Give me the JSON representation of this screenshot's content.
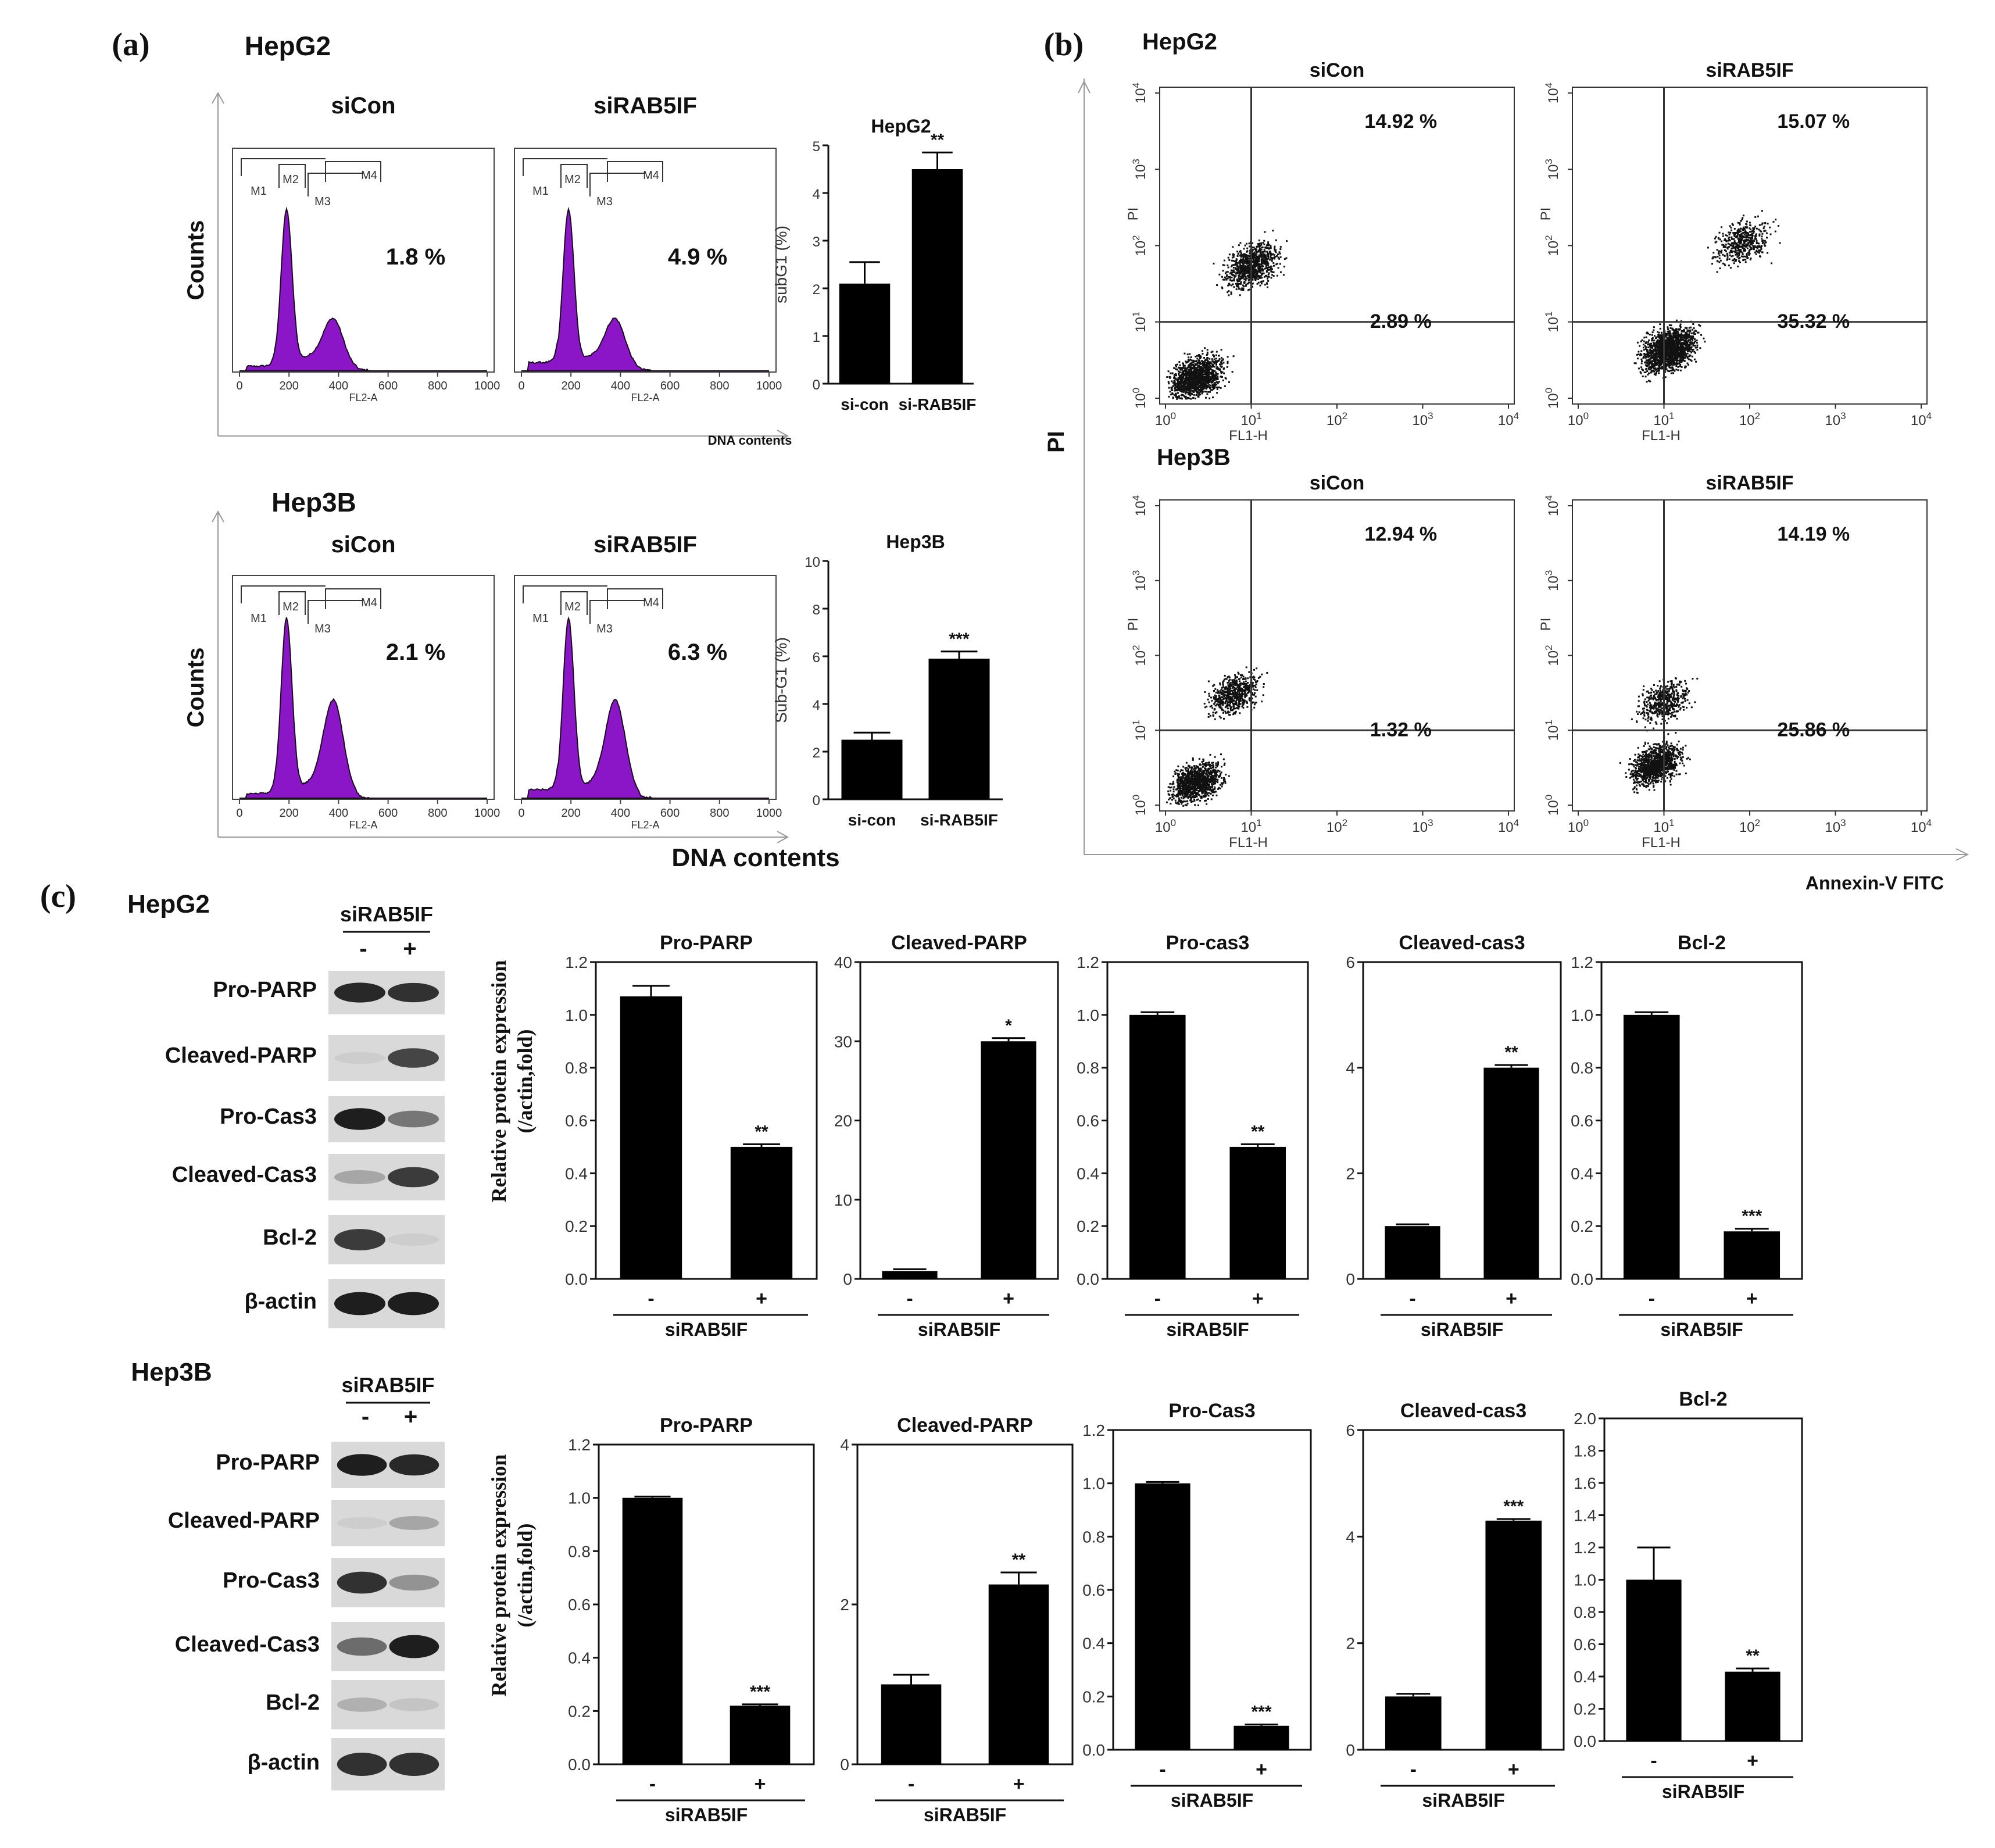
{
  "panel_labels": {
    "a": "(a)",
    "b": "(b)",
    "c": "(c)"
  },
  "panel_a": {
    "rows": [
      {
        "cell": "HepG2",
        "x_axis_label": "DNA contents",
        "y_axis_label": "Counts",
        "hist": [
          {
            "title": "siCon",
            "percent": "1.8 %",
            "gates": [
              "M1",
              "M2",
              "M3",
              "M4"
            ],
            "xlabel": "FL2-A",
            "ticks": [
              "0",
              "200",
              "400",
              "600",
              "800",
              "1000"
            ]
          },
          {
            "title": "siRAB5IF",
            "percent": "4.9 %",
            "gates": [
              "M1",
              "M2",
              "M3",
              "M4"
            ],
            "xlabel": "FL2-A",
            "ticks": [
              "0",
              "200",
              "400",
              "600",
              "800",
              "1000"
            ]
          }
        ]
      },
      {
        "cell": "Hep3B",
        "x_axis_label": "DNA contents",
        "y_axis_label": "Counts",
        "hist": [
          {
            "title": "siCon",
            "percent": "2.1 %",
            "gates": [
              "M1",
              "M2",
              "M3",
              "M4"
            ],
            "xlabel": "FL2-A",
            "ticks": [
              "0",
              "200",
              "400",
              "600",
              "800",
              "1000"
            ]
          },
          {
            "title": "siRAB5IF",
            "percent": "6.3 %",
            "gates": [
              "M1",
              "M2",
              "M3",
              "M4"
            ],
            "xlabel": "FL2-A",
            "ticks": [
              "0",
              "200",
              "400",
              "600",
              "800",
              "1000"
            ]
          }
        ]
      }
    ]
  },
  "panel_b": {
    "y_axis_label": "PI",
    "x_axis_label": "Annexin-V FITC",
    "rows": [
      {
        "cell": "HepG2",
        "plots": [
          {
            "title": "siCon",
            "upper_right": "14.92 %",
            "lower_right": "2.89 %"
          },
          {
            "title": "siRAB5IF",
            "upper_right": "15.07 %",
            "lower_right": "35.32 %"
          }
        ]
      },
      {
        "cell": "Hep3B",
        "plots": [
          {
            "title": "siCon",
            "upper_right": "12.94 %",
            "lower_right": "1.32 %"
          },
          {
            "title": "siRAB5IF",
            "upper_right": "14.19 %",
            "lower_right": "25.86 %"
          }
        ]
      }
    ],
    "xlabel": "FL1-H",
    "ylabel": "PI",
    "decades": [
      "0",
      "1",
      "2",
      "3",
      "4"
    ]
  },
  "panel_c": {
    "blots": [
      {
        "cell": "HepG2",
        "treatment": "siRAB5IF",
        "lanes": [
          "-",
          "+"
        ],
        "bands": [
          "Pro-PARP",
          "Cleaved-PARP",
          "Pro-Cas3",
          "Cleaved-Cas3",
          "Bcl-2",
          "β-actin"
        ]
      },
      {
        "cell": "Hep3B",
        "treatment": "siRAB5IF",
        "lanes": [
          "-",
          "+"
        ],
        "bands": [
          "Pro-PARP",
          "Cleaved-PARP",
          "Pro-Cas3",
          "Cleaved-Cas3",
          "Bcl-2",
          "β-actin"
        ]
      }
    ],
    "y_axis_label_line1": "Relative  protein expression",
    "y_axis_label_line2": "(/actin,fold)",
    "group_label": "siRAB5IF",
    "lane_labels": [
      "-",
      "+"
    ]
  },
  "chart_data": [
    {
      "type": "bar",
      "panel": "a-HepG2",
      "title": "HepG2",
      "ylabel": "subG1 (%)",
      "categories": [
        "si-con",
        "si-RAB5IF"
      ],
      "values": [
        2.1,
        4.5
      ],
      "errors": [
        0.45,
        0.35
      ],
      "significance": [
        "",
        "**"
      ],
      "ylim": [
        0,
        5
      ],
      "yticks": [
        "0",
        "1",
        "2",
        "3",
        "4",
        "5"
      ]
    },
    {
      "type": "bar",
      "panel": "a-Hep3B",
      "title": "Hep3B",
      "ylabel": "Sub-G1 (%)",
      "categories": [
        "si-con",
        "si-RAB5IF"
      ],
      "values": [
        2.5,
        5.9
      ],
      "errors": [
        0.3,
        0.3
      ],
      "significance": [
        "",
        "***"
      ],
      "ylim": [
        0,
        10
      ],
      "yticks": [
        "0",
        "2",
        "4",
        "6",
        "8",
        "10"
      ]
    },
    {
      "type": "bar",
      "panel": "c-HepG2",
      "title": "Pro-PARP",
      "categories": [
        "-",
        "+"
      ],
      "values": [
        1.07,
        0.5
      ],
      "errors": [
        0.04,
        0.01
      ],
      "significance": [
        "",
        "**"
      ],
      "ylim": [
        0,
        1.2
      ],
      "yticks": [
        "0.0",
        "0.2",
        "0.4",
        "0.6",
        "0.8",
        "1.0",
        "1.2"
      ]
    },
    {
      "type": "bar",
      "panel": "c-HepG2",
      "title": "Cleaved-PARP",
      "categories": [
        "-",
        "+"
      ],
      "values": [
        1,
        30
      ],
      "errors": [
        0,
        0.4
      ],
      "significance": [
        "",
        "*"
      ],
      "ylim": [
        0,
        40
      ],
      "yticks": [
        "0",
        "10",
        "20",
        "30",
        "40"
      ]
    },
    {
      "type": "bar",
      "panel": "c-HepG2",
      "title": "Pro-cas3",
      "categories": [
        "-",
        "+"
      ],
      "values": [
        1.0,
        0.5
      ],
      "errors": [
        0.01,
        0.01
      ],
      "significance": [
        "",
        "**"
      ],
      "ylim": [
        0,
        1.2
      ],
      "yticks": [
        "0.0",
        "0.2",
        "0.4",
        "0.6",
        "0.8",
        "1.0",
        "1.2"
      ]
    },
    {
      "type": "bar",
      "panel": "c-HepG2",
      "title": "Cleaved-cas3",
      "categories": [
        "-",
        "+"
      ],
      "values": [
        1,
        4.0
      ],
      "errors": [
        0,
        0.05
      ],
      "significance": [
        "",
        "**"
      ],
      "ylim": [
        0,
        6
      ],
      "yticks": [
        "0",
        "2",
        "4",
        "6"
      ]
    },
    {
      "type": "bar",
      "panel": "c-HepG2",
      "title": "Bcl-2",
      "categories": [
        "-",
        "+"
      ],
      "values": [
        1.0,
        0.18
      ],
      "errors": [
        0.01,
        0.01
      ],
      "significance": [
        "",
        "***"
      ],
      "ylim": [
        0,
        1.2
      ],
      "yticks": [
        "0.0",
        "0.2",
        "0.4",
        "0.6",
        "0.8",
        "1.0",
        "1.2"
      ]
    },
    {
      "type": "bar",
      "panel": "c-Hep3B",
      "title": "Pro-PARP",
      "categories": [
        "-",
        "+"
      ],
      "values": [
        1.0,
        0.22
      ],
      "errors": [
        0.005,
        0.005
      ],
      "significance": [
        "",
        "***"
      ],
      "ylim": [
        0,
        1.2
      ],
      "yticks": [
        "0.0",
        "0.2",
        "0.4",
        "0.6",
        "0.8",
        "1.0",
        "1.2"
      ]
    },
    {
      "type": "bar",
      "panel": "c-Hep3B",
      "title": "Cleaved-PARP",
      "categories": [
        "-",
        "+"
      ],
      "values": [
        1.0,
        2.25
      ],
      "errors": [
        0.12,
        0.15
      ],
      "significance": [
        "",
        "**"
      ],
      "ylim": [
        0,
        4
      ],
      "yticks": [
        "0",
        "2",
        "4"
      ]
    },
    {
      "type": "bar",
      "panel": "c-Hep3B",
      "title": "Pro-Cas3",
      "categories": [
        "-",
        "+"
      ],
      "values": [
        1.0,
        0.09
      ],
      "errors": [
        0.005,
        0.005
      ],
      "significance": [
        "",
        "***"
      ],
      "ylim": [
        0,
        1.2
      ],
      "yticks": [
        "0.0",
        "0.2",
        "0.4",
        "0.6",
        "0.8",
        "1.0",
        "1.2"
      ]
    },
    {
      "type": "bar",
      "panel": "c-Hep3B",
      "title": "Cleaved-cas3",
      "categories": [
        "-",
        "+"
      ],
      "values": [
        1.0,
        4.3
      ],
      "errors": [
        0.05,
        0.03
      ],
      "significance": [
        "",
        "***"
      ],
      "ylim": [
        0,
        6
      ],
      "yticks": [
        "0",
        "2",
        "4",
        "6"
      ]
    },
    {
      "type": "bar",
      "panel": "c-Hep3B",
      "title": "Bcl-2",
      "categories": [
        "-",
        "+"
      ],
      "values": [
        1.0,
        0.43
      ],
      "errors": [
        0.2,
        0.02
      ],
      "significance": [
        "",
        "**"
      ],
      "ylim": [
        0,
        2.0
      ],
      "yticks": [
        "0.0",
        "0.2",
        "0.4",
        "0.6",
        "0.8",
        "1.0",
        "1.2",
        "1.4",
        "1.6",
        "1.8",
        "2.0"
      ]
    }
  ]
}
